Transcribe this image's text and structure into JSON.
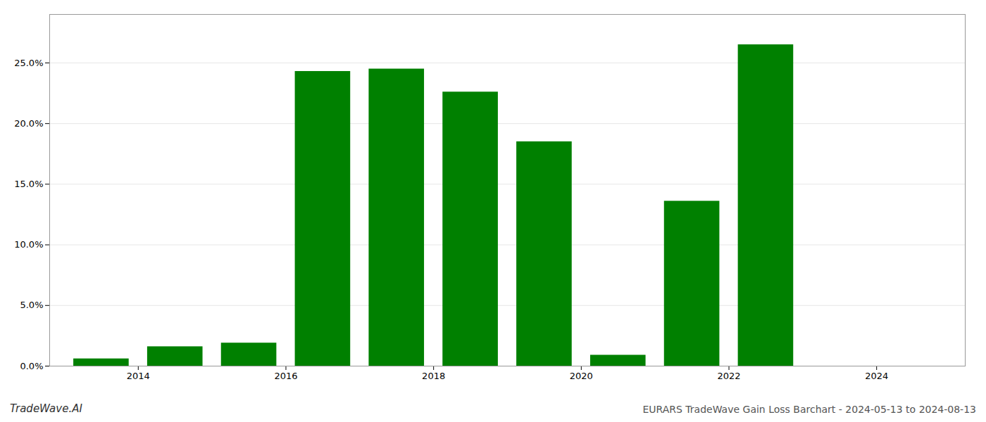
{
  "chart_data": {
    "type": "bar",
    "title": "EURARS TradeWave Gain Loss Barchart - 2024-05-13 to 2024-08-13",
    "annotations": [
      "TradeWave.AI"
    ],
    "x": [
      2013,
      2014,
      2015,
      2016,
      2017,
      2018,
      2019,
      2020,
      2021,
      2022,
      2023
    ],
    "values": [
      0.006,
      0.016,
      0.019,
      0.243,
      0.245,
      0.226,
      0.185,
      0.009,
      0.136,
      0.265,
      0.0
    ],
    "color": "#008000",
    "xlim": [
      2012.3,
      2024.7
    ],
    "xticks": [
      {
        "value": 2013.5,
        "label": "2014"
      },
      {
        "value": 2015.5,
        "label": "2016"
      },
      {
        "value": 2017.5,
        "label": "2018"
      },
      {
        "value": 2019.5,
        "label": "2020"
      },
      {
        "value": 2021.5,
        "label": "2022"
      },
      {
        "value": 2023.5,
        "label": "2024"
      }
    ],
    "ylim": [
      0,
      0.29
    ],
    "yticks": [
      {
        "value": 0,
        "label": "0.0%"
      },
      {
        "value": 0.05,
        "label": "5.0%"
      },
      {
        "value": 0.1,
        "label": "10.0%"
      },
      {
        "value": 0.15,
        "label": "15.0%"
      },
      {
        "value": 0.2,
        "label": "20.0%"
      },
      {
        "value": 0.25,
        "label": "25.0%"
      }
    ],
    "grid": true
  }
}
